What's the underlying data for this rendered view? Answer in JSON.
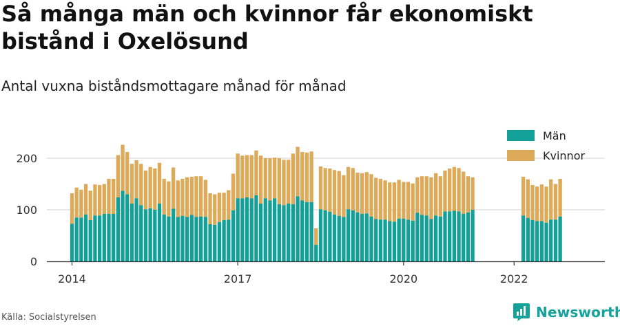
{
  "title": "Så många män och kvinnor får ekonomiskt bistånd i Oxelösund",
  "subtitle": "Antal vuxna biståndsmottagare månad för månad",
  "source": "Källa: Socialstyrelsen",
  "brand": {
    "name": "Newsworthy",
    "logo_icon": "bar-chart-logo-icon"
  },
  "colors": {
    "man": "#12a098",
    "kvinnor": "#dcaa58",
    "grid": "#e2e2e2",
    "axis": "#333333"
  },
  "chart_data": {
    "type": "bar",
    "stacked": true,
    "x_unit": "month",
    "x_start": "2014-01",
    "x_ticks": [
      "2014",
      "2017",
      "2020",
      "2022"
    ],
    "y_ticks": [
      "0",
      "100",
      "200"
    ],
    "ylim": [
      0,
      240
    ],
    "grid": true,
    "legend_position": "top-right",
    "series": [
      {
        "name": "Män",
        "values": [
          73,
          85,
          85,
          91,
          80,
          89,
          89,
          92,
          92,
          92,
          124,
          137,
          130,
          112,
          122,
          109,
          101,
          103,
          100,
          112,
          91,
          87,
          102,
          86,
          88,
          86,
          90,
          86,
          87,
          86,
          72,
          71,
          76,
          80,
          81,
          99,
          122,
          122,
          124,
          122,
          128,
          112,
          122,
          118,
          122,
          111,
          109,
          112,
          111,
          126,
          118,
          115,
          115,
          32,
          101,
          99,
          96,
          91,
          88,
          86,
          101,
          99,
          95,
          92,
          93,
          87,
          82,
          81,
          81,
          78,
          77,
          83,
          83,
          81,
          79,
          94,
          90,
          89,
          82,
          89,
          87,
          97,
          97,
          98,
          97,
          92,
          95,
          100,
          null,
          null,
          null,
          null,
          null,
          null,
          null,
          null,
          null,
          null,
          89,
          84,
          80,
          78,
          78,
          75,
          81,
          81,
          87
        ]
      },
      {
        "name": "Kvinnor",
        "values": [
          59,
          58,
          54,
          59,
          57,
          60,
          59,
          58,
          68,
          68,
          82,
          89,
          82,
          77,
          74,
          80,
          75,
          80,
          80,
          79,
          69,
          68,
          80,
          71,
          72,
          77,
          74,
          79,
          78,
          72,
          60,
          59,
          57,
          53,
          57,
          71,
          87,
          83,
          82,
          84,
          87,
          93,
          78,
          82,
          79,
          89,
          88,
          85,
          98,
          96,
          94,
          96,
          98,
          32,
          83,
          82,
          84,
          86,
          87,
          81,
          82,
          82,
          77,
          79,
          80,
          82,
          80,
          79,
          76,
          75,
          76,
          75,
          71,
          73,
          72,
          69,
          75,
          76,
          81,
          82,
          78,
          79,
          83,
          85,
          84,
          82,
          70,
          63,
          null,
          null,
          null,
          null,
          null,
          null,
          null,
          null,
          null,
          null,
          75,
          75,
          68,
          67,
          71,
          70,
          78,
          69,
          73
        ]
      }
    ]
  }
}
